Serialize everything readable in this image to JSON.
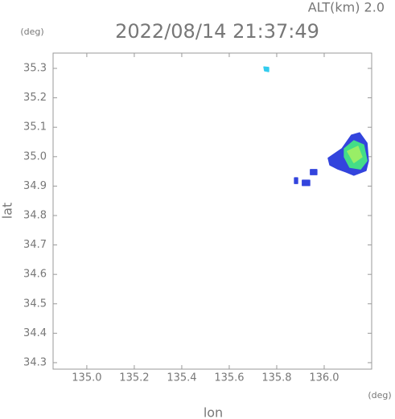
{
  "chart_data": {
    "type": "map",
    "title": "2022/08/14 21:37:49",
    "subtitle": "ALT(km) 2.0",
    "y_unit": "(deg)",
    "x_unit": "(deg)",
    "xlabel": "lon",
    "ylabel": "lat",
    "xlim": [
      134.858,
      136.2
    ],
    "ylim": [
      34.278,
      35.352
    ],
    "xticks": [
      {
        "value": 135.0,
        "label": "135.0"
      },
      135.2,
      135.4,
      135.6,
      135.8,
      {
        "value": 136.0,
        "label": "136.0"
      }
    ],
    "yticks": [
      34.3,
      34.4,
      34.5,
      34.6,
      34.7,
      34.8,
      34.9,
      {
        "value": 35.0,
        "label": "35.0"
      },
      35.1,
      35.2,
      35.3
    ],
    "regions": [
      {
        "color": "#3344dd",
        "x": [
          136.017,
          136.075,
          136.115,
          136.149,
          136.18,
          136.186,
          136.176,
          136.125,
          136.092,
          136.058,
          136.024
        ],
        "y": [
          34.995,
          35.027,
          35.073,
          35.081,
          35.046,
          34.986,
          34.953,
          34.937,
          34.948,
          34.958,
          34.972
        ]
      },
      {
        "color": "#44dd88",
        "x": [
          136.085,
          136.125,
          136.166,
          136.18,
          136.153,
          136.108,
          136.085
        ],
        "y": [
          35.027,
          35.054,
          35.04,
          34.986,
          34.958,
          34.964,
          34.999
        ]
      },
      {
        "color": "#99ee66",
        "x": [
          136.098,
          136.142,
          136.159,
          136.125
        ],
        "y": [
          35.018,
          35.035,
          34.999,
          34.98
        ]
      },
      {
        "color": "#33ccee",
        "x": [
          135.746,
          135.766,
          135.766,
          135.749
        ],
        "y": [
          35.305,
          35.303,
          35.289,
          35.292
        ]
      },
      {
        "color": "#3344dd",
        "x": [
          135.908,
          135.939,
          135.939,
          135.908
        ],
        "y": [
          34.92,
          34.92,
          34.902,
          34.902
        ]
      },
      {
        "color": "#3344dd",
        "x": [
          135.875,
          135.888,
          135.888,
          135.875
        ],
        "y": [
          34.928,
          34.928,
          34.909,
          34.909
        ]
      },
      {
        "color": "#3344dd",
        "x": [
          135.942,
          135.969,
          135.969,
          135.942
        ],
        "y": [
          34.956,
          34.956,
          34.939,
          34.939
        ]
      }
    ]
  }
}
